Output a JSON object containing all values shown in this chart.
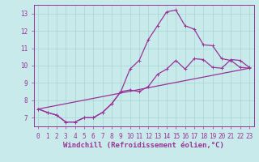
{
  "xlabel": "Windchill (Refroidissement éolien,°C)",
  "bg_color": "#c8eaea",
  "grid_color": "#a8d4d4",
  "line_color": "#993399",
  "spine_color": "#993399",
  "xlim": [
    -0.5,
    23.5
  ],
  "ylim": [
    6.5,
    13.5
  ],
  "yticks": [
    7,
    8,
    9,
    10,
    11,
    12,
    13
  ],
  "xticks": [
    0,
    1,
    2,
    3,
    4,
    5,
    6,
    7,
    8,
    9,
    10,
    11,
    12,
    13,
    14,
    15,
    16,
    17,
    18,
    19,
    20,
    21,
    22,
    23
  ],
  "curve1_x": [
    0,
    1,
    2,
    3,
    4,
    5,
    6,
    7,
    8,
    9,
    10,
    11,
    12,
    13,
    14,
    15,
    16,
    17,
    18,
    19,
    20,
    21,
    22,
    23
  ],
  "curve1_y": [
    7.5,
    7.3,
    7.15,
    6.75,
    6.75,
    7.0,
    7.0,
    7.3,
    7.8,
    8.5,
    9.8,
    10.3,
    11.5,
    12.3,
    13.1,
    13.2,
    12.3,
    12.1,
    11.2,
    11.15,
    10.4,
    10.3,
    9.9,
    9.85
  ],
  "curve2_x": [
    0,
    1,
    2,
    3,
    4,
    5,
    6,
    7,
    8,
    9,
    10,
    11,
    12,
    13,
    14,
    15,
    16,
    17,
    18,
    19,
    20,
    21,
    22,
    23
  ],
  "curve2_y": [
    7.5,
    7.3,
    7.15,
    6.75,
    6.75,
    7.0,
    7.0,
    7.3,
    7.8,
    8.5,
    8.6,
    8.5,
    8.8,
    9.5,
    9.8,
    10.3,
    9.8,
    10.4,
    10.35,
    9.9,
    9.85,
    10.35,
    10.3,
    9.9
  ],
  "line3_x": [
    0,
    23
  ],
  "line3_y": [
    7.5,
    9.85
  ],
  "marker": "+",
  "markersize": 2.5,
  "markeredgewidth": 0.7,
  "linewidth": 0.9,
  "tick_fontsize": 5.5,
  "xlabel_fontsize": 6.5
}
